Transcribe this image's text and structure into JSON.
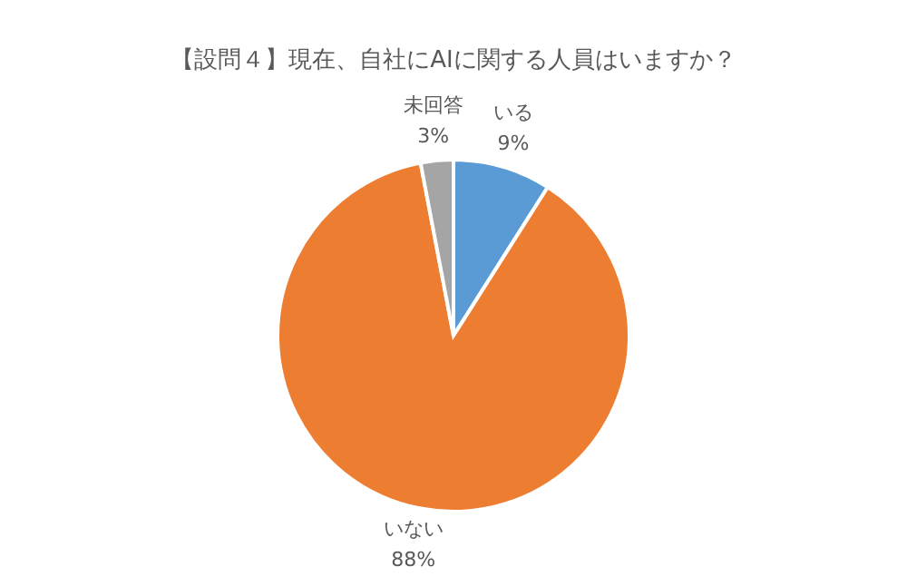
{
  "chart_data": {
    "type": "pie",
    "title": "【設問４】現在、自社にAIに関する人員はいますか？",
    "categories": [
      "いる",
      "いない",
      "未回答"
    ],
    "values": [
      9,
      88,
      3
    ],
    "value_labels": [
      "9%",
      "88%",
      "3%"
    ],
    "colors": [
      "#5b9bd5",
      "#ed7d31",
      "#a5a5a5"
    ]
  }
}
